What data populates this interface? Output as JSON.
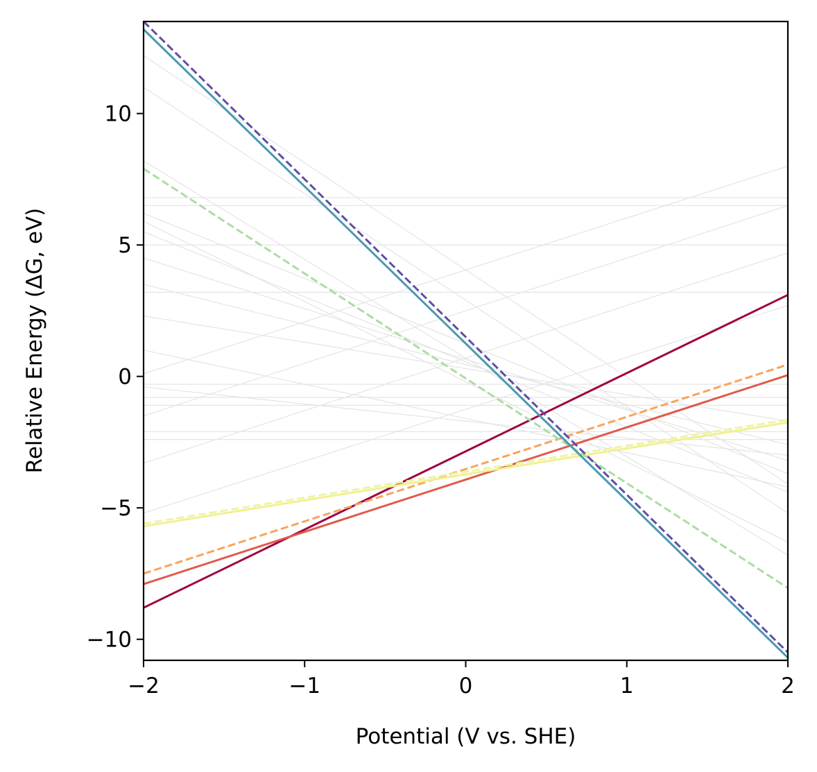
{
  "chart_data": {
    "type": "line",
    "xlabel": "Potential (V vs. SHE)",
    "ylabel": "Relative Energy (ΔG, eV)",
    "xlim": [
      -2,
      2
    ],
    "ylim": [
      -10.8,
      13.5
    ],
    "xticks": [
      -2,
      -1,
      0,
      1,
      2
    ],
    "yticks": [
      -10,
      -5,
      0,
      5,
      10
    ],
    "xtick_labels": [
      "−2",
      "−1",
      "0",
      "1",
      "2"
    ],
    "ytick_labels": [
      "−10",
      "−5",
      "0",
      "5",
      "10"
    ],
    "grid": false,
    "legend": "none",
    "highlighted_series": [
      {
        "x": [
          -2,
          2
        ],
        "y": [
          -8.8,
          3.1
        ],
        "color": "#9e0142",
        "dash": "solid"
      },
      {
        "x": [
          -2,
          2
        ],
        "y": [
          -7.9,
          0.05
        ],
        "color": "#e05a4b",
        "dash": "solid"
      },
      {
        "x": [
          -2,
          2
        ],
        "y": [
          -7.5,
          0.45
        ],
        "color": "#f8a35c",
        "dash": "dashed"
      },
      {
        "x": [
          -2,
          2
        ],
        "y": [
          -5.7,
          -1.75
        ],
        "color": "#f1f08f",
        "dash": "solid"
      },
      {
        "x": [
          -2,
          2
        ],
        "y": [
          -5.6,
          -1.65
        ],
        "color": "#eef3a4",
        "dash": "dashed"
      },
      {
        "x": [
          -2,
          2
        ],
        "y": [
          7.9,
          -8.05
        ],
        "color": "#acdca3",
        "dash": "dashed"
      },
      {
        "x": [
          -2,
          2
        ],
        "y": [
          13.2,
          -10.7
        ],
        "color": "#4a98b1",
        "dash": "solid"
      },
      {
        "x": [
          -2,
          2
        ],
        "y": [
          13.5,
          -10.5
        ],
        "color": "#5e4fa2",
        "dash": "dashed"
      }
    ],
    "background_series": [
      {
        "x": [
          -2,
          2
        ],
        "y": [
          6.8,
          6.8
        ]
      },
      {
        "x": [
          -2,
          2
        ],
        "y": [
          6.5,
          6.5
        ]
      },
      {
        "x": [
          -2,
          2
        ],
        "y": [
          5.0,
          5.0
        ]
      },
      {
        "x": [
          -2,
          2
        ],
        "y": [
          3.2,
          3.2
        ]
      },
      {
        "x": [
          -2,
          2
        ],
        "y": [
          -0.3,
          -0.3
        ]
      },
      {
        "x": [
          -2,
          2
        ],
        "y": [
          -0.8,
          -0.8
        ]
      },
      {
        "x": [
          -2,
          2
        ],
        "y": [
          -1.1,
          -1.1
        ]
      },
      {
        "x": [
          -2,
          2
        ],
        "y": [
          -2.1,
          -2.1
        ]
      },
      {
        "x": [
          -2,
          2
        ],
        "y": [
          -2.4,
          -2.4
        ]
      },
      {
        "x": [
          -2,
          2
        ],
        "y": [
          0.1,
          8.0
        ]
      },
      {
        "x": [
          -2,
          2
        ],
        "y": [
          -1.5,
          6.5
        ]
      },
      {
        "x": [
          -2,
          2
        ],
        "y": [
          -3.3,
          4.7
        ]
      },
      {
        "x": [
          -2,
          2
        ],
        "y": [
          -5.2,
          2.7
        ]
      },
      {
        "x": [
          -2,
          2
        ],
        "y": [
          12.2,
          -4.1
        ]
      },
      {
        "x": [
          -2,
          2
        ],
        "y": [
          11.0,
          -5.2
        ]
      },
      {
        "x": [
          -2,
          2
        ],
        "y": [
          6.2,
          -3.7
        ]
      },
      {
        "x": [
          -2,
          2
        ],
        "y": [
          5.5,
          -4.4
        ]
      },
      {
        "x": [
          -2,
          2
        ],
        "y": [
          4.5,
          -3.2
        ]
      },
      {
        "x": [
          -2,
          2
        ],
        "y": [
          3.5,
          -2.6
        ]
      },
      {
        "x": [
          -2,
          2
        ],
        "y": [
          2.3,
          -1.7
        ]
      },
      {
        "x": [
          -2,
          2
        ],
        "y": [
          1.0,
          -4.2
        ]
      },
      {
        "x": [
          -2,
          2
        ],
        "y": [
          8.2,
          -6.8
        ]
      },
      {
        "x": [
          -2,
          2
        ],
        "y": [
          5.9,
          -6.3
        ]
      },
      {
        "x": [
          -2,
          2
        ],
        "y": [
          -0.4,
          -3.0
        ]
      }
    ]
  }
}
